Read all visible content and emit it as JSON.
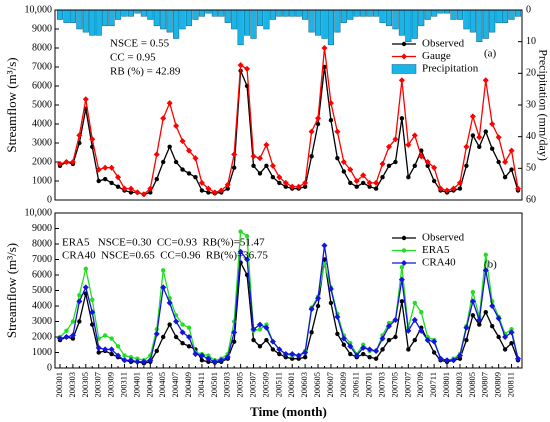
{
  "chart_data": [
    {
      "type": "line",
      "ylabel": "Streamflow (m³/s)",
      "y2label": "Precipitation (mm/day)",
      "ylim": [
        0,
        10000
      ],
      "yticks": [
        0,
        1000,
        2000,
        3000,
        4000,
        5000,
        6000,
        7000,
        8000,
        9000,
        {
          "value": 10000,
          "label": "10,000"
        }
      ],
      "y2lim": [
        0,
        60
      ],
      "y2ticks": [
        0,
        10,
        20,
        30,
        40,
        50,
        60
      ],
      "y2_inverted": true,
      "grid": false,
      "legend": "upper right",
      "annotations": [
        "NSCE = 0.55",
        "CC = 0.95",
        "RB (%) = 42.89",
        "(a)"
      ],
      "series": [
        {
          "name": "Observed",
          "type": "line",
          "marker": "circle",
          "color": "#000000",
          "values": [
            1800,
            2000,
            1900,
            3000,
            4800,
            2800,
            1000,
            1100,
            900,
            700,
            500,
            400,
            400,
            300,
            400,
            1100,
            2000,
            2800,
            2000,
            1600,
            1400,
            1200,
            500,
            400,
            350,
            400,
            600,
            1700,
            6800,
            6000,
            1800,
            1400,
            1800,
            1200,
            900,
            700,
            600,
            600,
            700,
            2300,
            4000,
            7000,
            4200,
            2200,
            1500,
            900,
            700,
            900,
            700,
            600,
            1200,
            1800,
            2000,
            4300,
            1200,
            1800,
            2600,
            1800,
            1000,
            500,
            400,
            500,
            600,
            1800,
            3400,
            2800,
            3600,
            2700,
            2000,
            1200,
            1600,
            500
          ]
        },
        {
          "name": "Gauge",
          "type": "line",
          "marker": "diamond",
          "color": "#ff0000",
          "values": [
            1900,
            2000,
            2000,
            3400,
            5300,
            3200,
            1600,
            1700,
            1700,
            1200,
            600,
            600,
            400,
            300,
            600,
            2400,
            4300,
            5100,
            3900,
            3100,
            2600,
            2200,
            900,
            600,
            400,
            500,
            800,
            2400,
            7100,
            6900,
            2300,
            2200,
            2900,
            1800,
            1200,
            900,
            700,
            700,
            900,
            3600,
            4300,
            8000,
            5100,
            3600,
            2000,
            1600,
            1000,
            1300,
            900,
            900,
            1900,
            2800,
            3200,
            6300,
            2900,
            3400,
            2300,
            2000,
            1700,
            600,
            500,
            600,
            900,
            2800,
            4400,
            3300,
            6300,
            4000,
            3300,
            2000,
            2600,
            600
          ]
        },
        {
          "name": "Precipitation",
          "type": "bar",
          "axis": "y2",
          "color": "#1ab4e6",
          "values": [
            3,
            4,
            4,
            6,
            7,
            8,
            8,
            5,
            5,
            3,
            2,
            2,
            1,
            2,
            3,
            5,
            6,
            7,
            9,
            6,
            5,
            3,
            2,
            1,
            2,
            2,
            4,
            6,
            11,
            8,
            9,
            5,
            6,
            3,
            2,
            2,
            2,
            2,
            3,
            7,
            8,
            9,
            11,
            7,
            4,
            3,
            2,
            2,
            2,
            2,
            4,
            5,
            6,
            8,
            10,
            9,
            5,
            3,
            2,
            1,
            1,
            3,
            3,
            6,
            7,
            10,
            9,
            7,
            4,
            4,
            3,
            2
          ]
        }
      ]
    },
    {
      "type": "line",
      "xlabel": "Time (month)",
      "ylabel": "Streamflow (m³/s)",
      "categories": [
        "200301",
        null,
        "200303",
        null,
        "200305",
        null,
        "200307",
        null,
        "200309",
        null,
        "200311",
        null,
        "200401",
        null,
        "200403",
        null,
        "200405",
        null,
        "200407",
        null,
        "200409",
        null,
        "200411",
        null,
        "200501",
        null,
        "200503",
        null,
        "200505",
        null,
        "200507",
        null,
        "200509",
        null,
        "200511",
        null,
        "200601",
        null,
        "200603",
        null,
        "200605",
        null,
        "200607",
        null,
        "200609",
        null,
        "200611",
        null,
        "200701",
        null,
        "200703",
        null,
        "200705",
        null,
        "200707",
        null,
        "200709",
        null,
        "200711",
        null,
        "200801",
        null,
        "200803",
        null,
        "200805",
        null,
        "200807",
        null,
        "200809",
        null,
        "200811",
        null
      ],
      "ylim": [
        0,
        10000
      ],
      "yticks": [
        0,
        1000,
        2000,
        3000,
        4000,
        5000,
        6000,
        7000,
        8000,
        9000,
        {
          "value": 10000,
          "label": "10,000"
        }
      ],
      "grid": false,
      "legend": "upper right",
      "annotations": [
        "ERA5   NSCE=0.30  CC=0.93  RB(%)=51.47",
        "CRA40  NSCE=0.65  CC=0.96  RB(%)=36.75",
        "(b)"
      ],
      "series": [
        {
          "name": "Observed",
          "type": "line",
          "marker": "circle",
          "color": "#000000",
          "values": [
            1800,
            2000,
            1900,
            3000,
            4800,
            2800,
            1000,
            1100,
            900,
            700,
            500,
            400,
            400,
            300,
            400,
            1100,
            2000,
            2800,
            2000,
            1600,
            1400,
            1200,
            500,
            400,
            350,
            400,
            600,
            1700,
            6800,
            6000,
            1800,
            1400,
            1800,
            1200,
            900,
            700,
            600,
            600,
            700,
            2300,
            4000,
            7000,
            4200,
            2200,
            1500,
            900,
            700,
            900,
            700,
            600,
            1200,
            1800,
            2000,
            4300,
            1200,
            1800,
            2600,
            1800,
            1000,
            500,
            400,
            500,
            600,
            1800,
            3400,
            2800,
            3600,
            2700,
            2000,
            1200,
            1600,
            500
          ]
        },
        {
          "name": "ERA5",
          "type": "line",
          "marker": "circle",
          "color": "#22dd22",
          "values": [
            2000,
            2400,
            3000,
            4700,
            6400,
            4400,
            1900,
            2100,
            1900,
            1400,
            800,
            700,
            600,
            500,
            800,
            2500,
            6300,
            4500,
            3400,
            2800,
            2600,
            1000,
            900,
            800,
            500,
            600,
            900,
            3000,
            8800,
            8500,
            2400,
            2500,
            2800,
            1700,
            1200,
            900,
            800,
            800,
            1100,
            3900,
            4600,
            6700,
            5200,
            3500,
            2100,
            1600,
            900,
            1500,
            1100,
            1100,
            2100,
            2900,
            3100,
            6500,
            2600,
            4200,
            3600,
            2000,
            1800,
            600,
            500,
            600,
            900,
            2700,
            4900,
            3300,
            7300,
            4300,
            3300,
            2200,
            2500,
            600
          ]
        },
        {
          "name": "CRA40",
          "type": "line",
          "marker": "diamond",
          "color": "#1414e0",
          "values": [
            1900,
            2000,
            2100,
            4300,
            5200,
            3600,
            1300,
            1200,
            1200,
            800,
            500,
            500,
            400,
            400,
            500,
            2200,
            5200,
            4200,
            3000,
            2300,
            2000,
            900,
            800,
            600,
            400,
            500,
            700,
            2300,
            7500,
            7000,
            2500,
            2800,
            2600,
            1700,
            1200,
            900,
            900,
            800,
            1000,
            3800,
            4500,
            7900,
            5100,
            3300,
            1900,
            1400,
            800,
            1300,
            1200,
            1100,
            1900,
            2700,
            3100,
            5700,
            2400,
            3100,
            2400,
            1800,
            1700,
            600,
            500,
            500,
            800,
            2600,
            4300,
            3100,
            6300,
            4000,
            3200,
            2000,
            2300,
            600
          ]
        }
      ]
    }
  ]
}
